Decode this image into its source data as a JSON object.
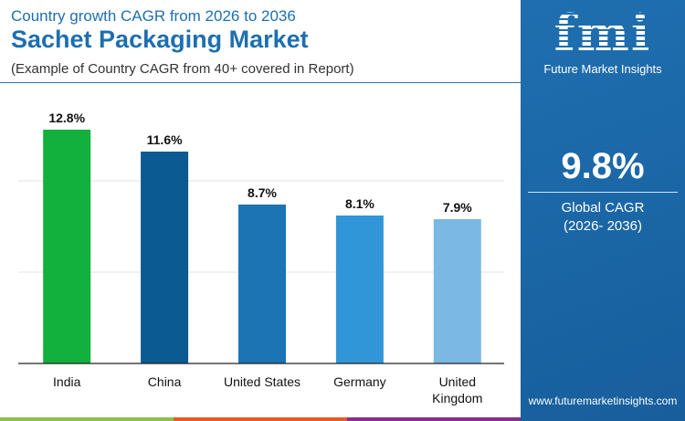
{
  "header": {
    "subtitle": "Country growth CAGR from 2026 to 2036",
    "title": "Sachet Packaging Market",
    "note": "(Example of Country CAGR from 40+ covered in Report)"
  },
  "sidebar": {
    "logo": "fmi",
    "brand": "Future Market Insights",
    "global_value": "9.8%",
    "global_label": "Global CAGR",
    "global_period": "(2026- 2036)",
    "url": "www.futuremarketinsights.com",
    "bg_color": "#1a67a8"
  },
  "chart_data": {
    "type": "bar",
    "title": "",
    "xlabel": "",
    "ylabel": "",
    "ylim": [
      0,
      15
    ],
    "grid": true,
    "categories": [
      "India",
      "China",
      "United States",
      "Germany",
      "United Kingdom"
    ],
    "values": [
      12.8,
      11.6,
      8.7,
      8.1,
      7.9
    ],
    "labels": [
      "12.8%",
      "11.6%",
      "8.7%",
      "8.1%",
      "7.9%"
    ],
    "colors": [
      "#12b03c",
      "#0b5a92",
      "#1b74b3",
      "#3096d7",
      "#7bb9e2"
    ]
  },
  "footer": {
    "strip_colors": [
      "#8cc04a",
      "#e85a24",
      "#8a2e8a"
    ]
  }
}
